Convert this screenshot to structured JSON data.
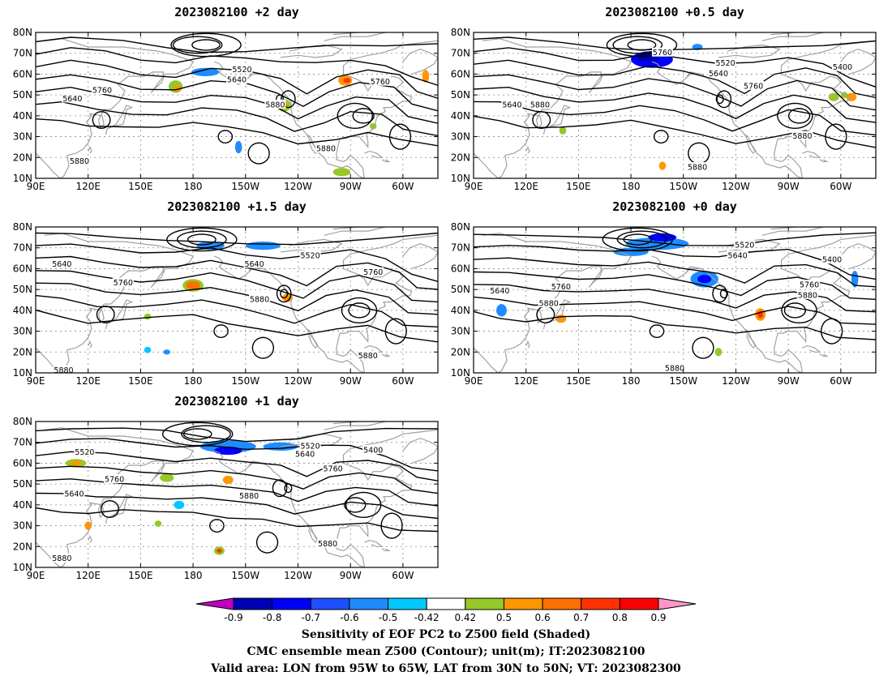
{
  "panels": [
    {
      "id": "p1",
      "title": "2023082100 +2 day"
    },
    {
      "id": "p2",
      "title": "2023082100 +0.5 day"
    },
    {
      "id": "p3",
      "title": "2023082100 +1.5 day"
    },
    {
      "id": "p4",
      "title": "2023082100 +0 day"
    },
    {
      "id": "p5",
      "title": "2023082100 +1 day"
    }
  ],
  "map_axes": {
    "lon_ticks": [
      "90E",
      "120E",
      "150E",
      "180",
      "150W",
      "120W",
      "90W",
      "60W"
    ],
    "lat_ticks": [
      "10N",
      "20N",
      "30N",
      "40N",
      "50N",
      "60N",
      "70N",
      "80N"
    ],
    "lon_range_deg_east": [
      90,
      320
    ],
    "lat_range_deg_north": [
      10,
      80
    ]
  },
  "contour_labels": {
    "p1": [
      "5520",
      "5640",
      "5760",
      "5640",
      "5760",
      "5880",
      "5880",
      "5880"
    ],
    "p2": [
      "5520",
      "5640",
      "5400",
      "5640",
      "5880",
      "5760",
      "5760",
      "5880",
      "5880"
    ],
    "p3": [
      "5640",
      "5640",
      "5520",
      "5760",
      "5760",
      "5880",
      "5880",
      "5880"
    ],
    "p4": [
      "5520",
      "5640",
      "5400",
      "5640",
      "5760",
      "5760",
      "5880",
      "5880",
      "5880"
    ],
    "p5": [
      "5520",
      "5520",
      "5640",
      "5400",
      "5760",
      "5640",
      "5760",
      "5880",
      "5880",
      "5880"
    ]
  },
  "colorbar": {
    "labels": [
      "-0.9",
      "-0.8",
      "-0.7",
      "-0.6",
      "-0.5",
      "-0.42",
      "0.42",
      "0.5",
      "0.6",
      "0.7",
      "0.8",
      "0.9"
    ],
    "colors": [
      "#c000c0",
      "#0000b4",
      "#0000ff",
      "#1e50ff",
      "#1e8cff",
      "#00c8ff",
      "#ffffff",
      "#96c828",
      "#ff9600",
      "#ff6e00",
      "#ff3200",
      "#ff0000",
      "#ff96c8"
    ]
  },
  "caption": {
    "line1": "Sensitivity of EOF PC2 to Z500 field (Shaded)",
    "line2": "CMC ensemble mean Z500 (Contour); unit(m); IT:2023082100",
    "line3": "Valid area: LON from 95W to 65W, LAT from 30N to 50N; VT: 2023082300"
  }
}
